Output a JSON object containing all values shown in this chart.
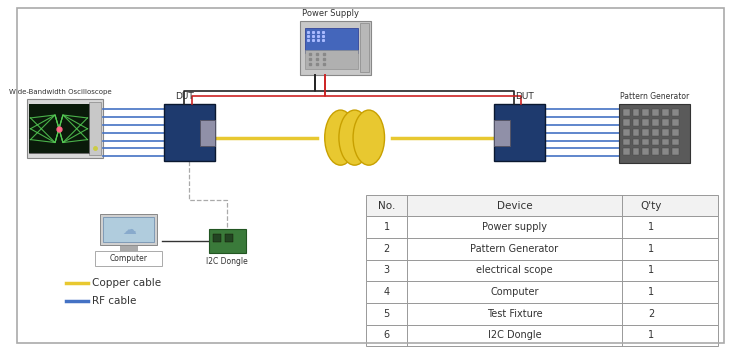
{
  "bg_color": "#ffffff",
  "border_color": "#aaaaaa",
  "table_headers": [
    "No.",
    "Device",
    "Q'ty"
  ],
  "table_rows": [
    [
      "1",
      "Power supply",
      "1"
    ],
    [
      "2",
      "Pattern Generator",
      "1"
    ],
    [
      "3",
      "electrical scope",
      "1"
    ],
    [
      "4",
      "Computer",
      "1"
    ],
    [
      "5",
      "Test Fixture",
      "2"
    ],
    [
      "6",
      "I2C Dongle",
      "1"
    ]
  ],
  "legend_items": [
    {
      "label": "Copper cable",
      "color": "#e8c830"
    },
    {
      "label": "RF cable",
      "color": "#4472c4"
    }
  ],
  "device_labels": {
    "oscilloscope": "Wide-Bandwidth Oscilloscope",
    "dut_left": "DUT",
    "dut_right": "DUT",
    "power_supply": "Power Supply",
    "pattern_gen": "Pattern Generator",
    "computer": "Computer",
    "i2c": "I2C Dongle"
  },
  "colors": {
    "dut_blue": "#1e3a6e",
    "connector_gray": "#9090a0",
    "scope_green": "#44aa44",
    "scope_body": "#d8d8d8",
    "pattern_gen_body": "#606060",
    "power_supply_body": "#c8c8c8",
    "copper_cable": "#e8c830",
    "rf_cable": "#4472c4",
    "red_wire": "#cc2222",
    "dark_wire": "#222222",
    "table_border": "#999999",
    "i2c_body": "#3a7a3a",
    "coil_color": "#e8c830",
    "coil_edge": "#c8a000"
  }
}
